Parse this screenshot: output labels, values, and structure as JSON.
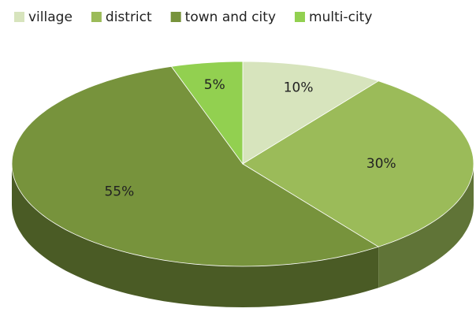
{
  "chart_data": {
    "type": "pie",
    "categories": [
      "village",
      "district",
      "town and city",
      "multi-city"
    ],
    "values": [
      10,
      30,
      55,
      5
    ],
    "value_labels": [
      "10%",
      "30%",
      "55%",
      "5%"
    ],
    "colors": [
      "#d7e4bd",
      "#9bbb59",
      "#77933c",
      "#92d050"
    ],
    "legend": "top"
  }
}
